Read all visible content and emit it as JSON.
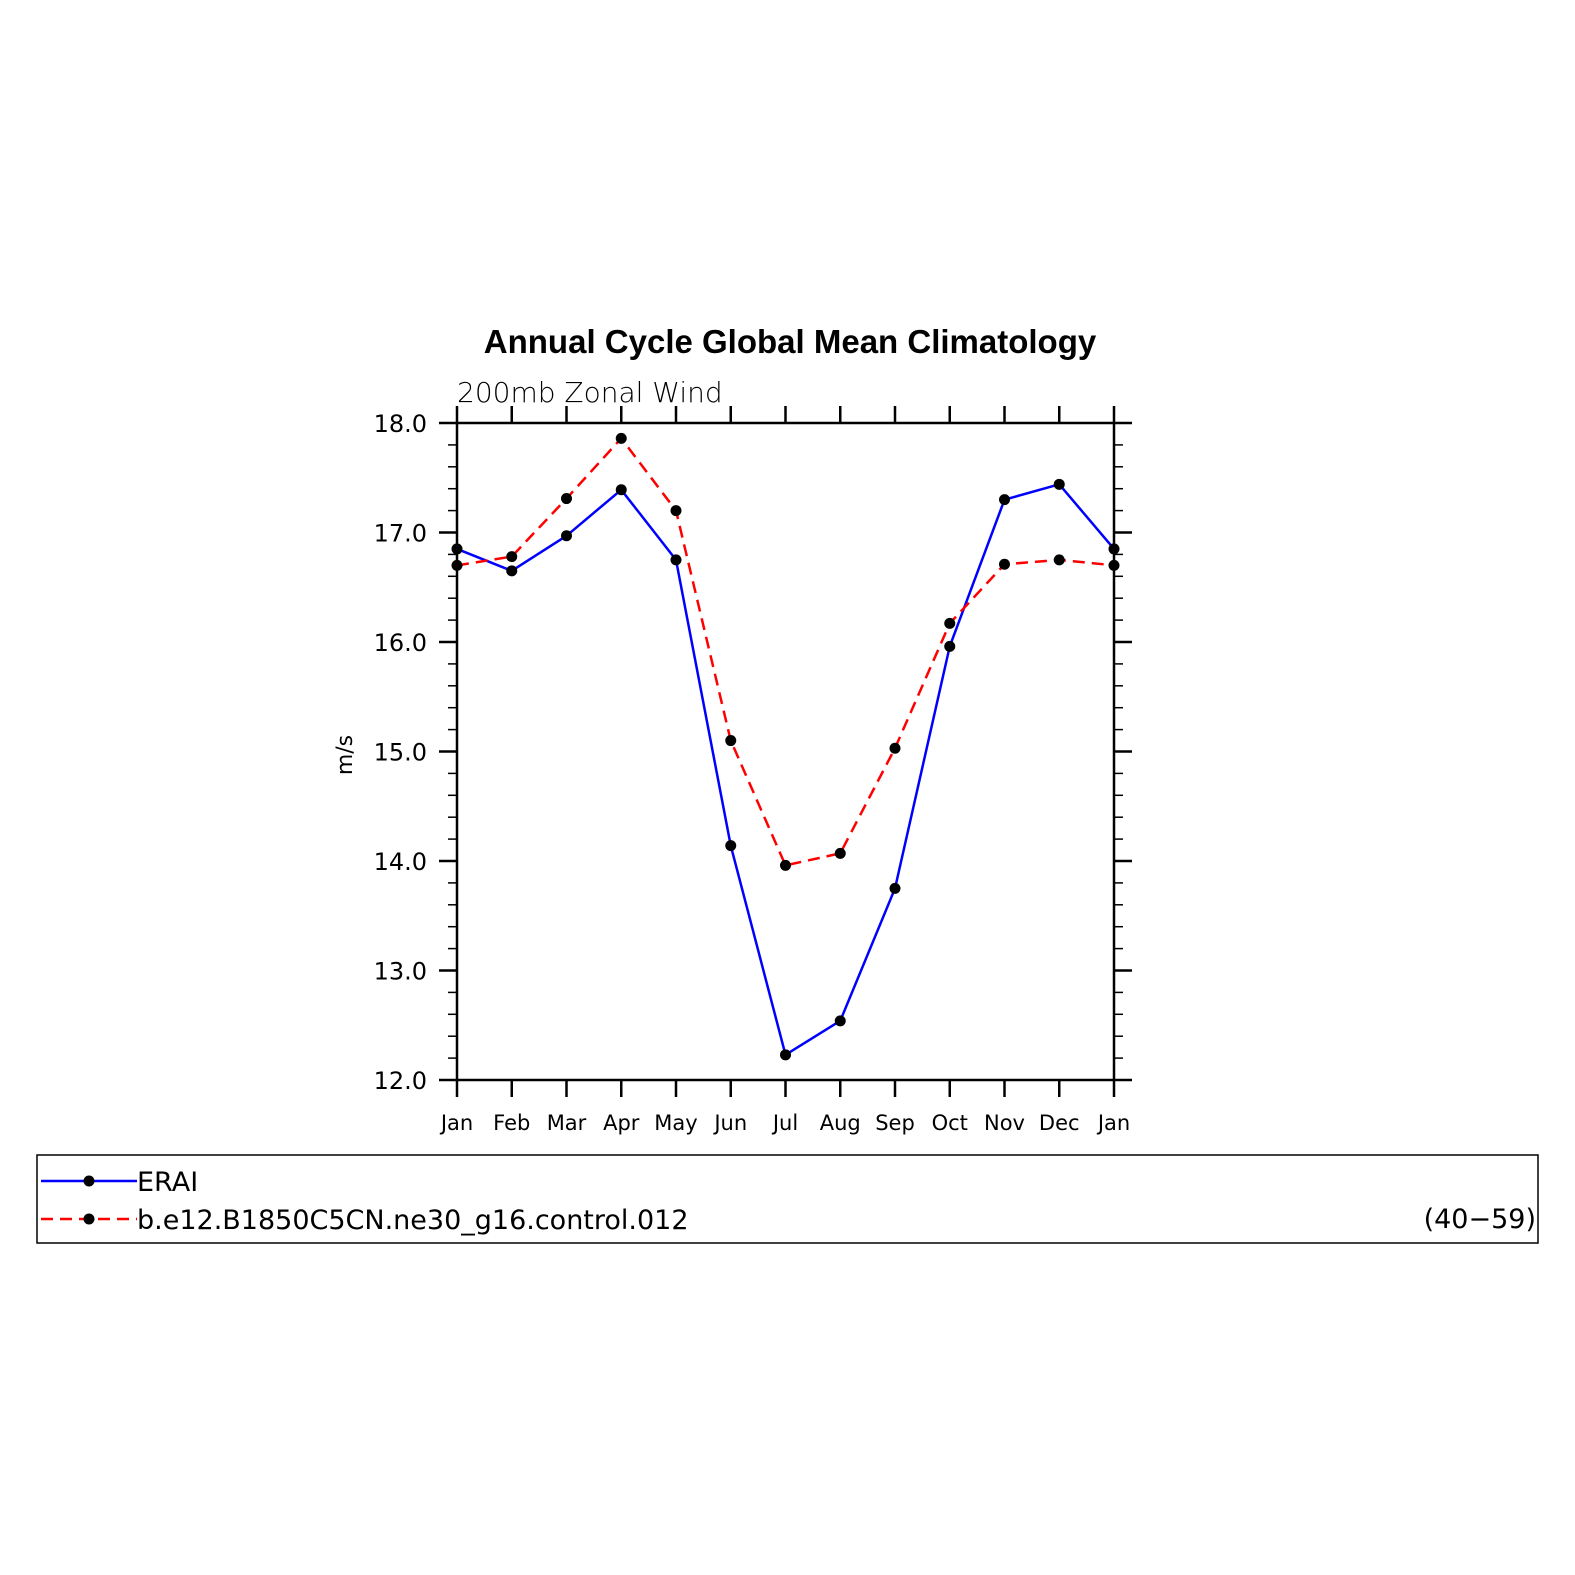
{
  "chart_data": {
    "type": "line",
    "title": "Annual Cycle Global Mean Climatology",
    "subtitle": "200mb Zonal Wind",
    "ylabel": "m/s",
    "xlabel": "",
    "categories": [
      "Jan",
      "Feb",
      "Mar",
      "Apr",
      "May",
      "Jun",
      "Jul",
      "Aug",
      "Sep",
      "Oct",
      "Nov",
      "Dec",
      "Jan"
    ],
    "ylim": [
      12.0,
      18.0
    ],
    "yticks": [
      "12.0",
      "13.0",
      "14.0",
      "15.0",
      "16.0",
      "17.0",
      "18.0"
    ],
    "grid": false,
    "series": [
      {
        "name": "ERAI",
        "color": "#0000ff",
        "style": "solid",
        "marker": "filled-circle",
        "values": [
          16.85,
          16.65,
          16.97,
          17.39,
          16.75,
          14.14,
          12.23,
          12.54,
          13.75,
          15.96,
          17.3,
          17.44,
          16.85
        ]
      },
      {
        "name": "b.e12.B1850C5CN.ne30_g16.control.012",
        "color": "#ff0000",
        "style": "dashed",
        "marker": "filled-circle",
        "values": [
          16.7,
          16.78,
          17.31,
          17.86,
          17.2,
          15.1,
          13.96,
          14.07,
          15.03,
          16.17,
          16.71,
          16.75,
          16.7
        ]
      }
    ],
    "legend": {
      "placement": "bottom",
      "note": "(40−59)"
    }
  }
}
